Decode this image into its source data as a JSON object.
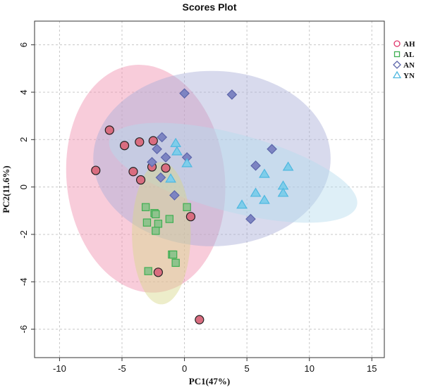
{
  "chart_data": {
    "type": "scatter",
    "title": "Scores Plot",
    "xlabel": "PC1(47%)",
    "ylabel": "PC2(11.6%)",
    "xlim": [
      -12,
      16
    ],
    "ylim": [
      -7.2,
      7.0
    ],
    "xticks": [
      -10,
      -5,
      0,
      5,
      10,
      15
    ],
    "yticks": [
      -6,
      -4,
      -2,
      0,
      2,
      4,
      6
    ],
    "grid": true,
    "legend_position": "top-right",
    "series": [
      {
        "name": "AH",
        "marker": "circle",
        "color": "#e0356b",
        "point_fill": "#d96d80",
        "ellipse_fill": "#ef8fac",
        "points": [
          {
            "x": -6.0,
            "y": 2.4
          },
          {
            "x": -4.8,
            "y": 1.75
          },
          {
            "x": -3.6,
            "y": 1.9
          },
          {
            "x": -2.5,
            "y": 1.95
          },
          {
            "x": -7.1,
            "y": 0.7
          },
          {
            "x": -4.1,
            "y": 0.65
          },
          {
            "x": -3.5,
            "y": 0.3
          },
          {
            "x": -2.6,
            "y": 0.85
          },
          {
            "x": -1.5,
            "y": 0.8
          },
          {
            "x": 0.5,
            "y": -1.25
          },
          {
            "x": -2.1,
            "y": -3.6
          },
          {
            "x": 1.2,
            "y": -5.6
          }
        ]
      },
      {
        "name": "AL",
        "marker": "square",
        "color": "#3fae52",
        "point_fill": "#8fc38d",
        "ellipse_fill": "#d8d889",
        "points": [
          {
            "x": -3.1,
            "y": -0.85
          },
          {
            "x": -2.4,
            "y": -1.1
          },
          {
            "x": -2.3,
            "y": -1.15
          },
          {
            "x": -3.0,
            "y": -1.5
          },
          {
            "x": -2.1,
            "y": -1.55
          },
          {
            "x": -2.3,
            "y": -1.85
          },
          {
            "x": -1.2,
            "y": -1.35
          },
          {
            "x": 0.2,
            "y": -0.85
          },
          {
            "x": -1.0,
            "y": -2.85
          },
          {
            "x": -0.9,
            "y": -2.85
          },
          {
            "x": -0.7,
            "y": -3.2
          },
          {
            "x": -2.9,
            "y": -3.55
          }
        ]
      },
      {
        "name": "AN",
        "marker": "diamond",
        "color": "#5d66aa",
        "point_fill": "#7d84c2",
        "ellipse_fill": "#a8aed6",
        "points": [
          {
            "x": 0.0,
            "y": 3.95
          },
          {
            "x": 3.8,
            "y": 3.9
          },
          {
            "x": -1.8,
            "y": 2.1
          },
          {
            "x": -2.2,
            "y": 1.6
          },
          {
            "x": -1.5,
            "y": 1.25
          },
          {
            "x": -2.6,
            "y": 1.05
          },
          {
            "x": -1.9,
            "y": 0.4
          },
          {
            "x": 0.2,
            "y": 1.25
          },
          {
            "x": 7.0,
            "y": 1.6
          },
          {
            "x": 5.7,
            "y": 0.9
          },
          {
            "x": -0.8,
            "y": -0.35
          },
          {
            "x": 5.3,
            "y": -1.35
          }
        ]
      },
      {
        "name": "YN",
        "marker": "triangle",
        "color": "#4fb8e0",
        "point_fill": "#7fcdea",
        "ellipse_fill": "#b5dced",
        "points": [
          {
            "x": -0.7,
            "y": 1.85
          },
          {
            "x": -0.6,
            "y": 1.5
          },
          {
            "x": 0.2,
            "y": 1.0
          },
          {
            "x": -1.1,
            "y": 0.35
          },
          {
            "x": 6.4,
            "y": 0.55
          },
          {
            "x": 8.3,
            "y": 0.85
          },
          {
            "x": 7.9,
            "y": 0.05
          },
          {
            "x": 7.9,
            "y": -0.25
          },
          {
            "x": 5.7,
            "y": -0.25
          },
          {
            "x": 6.4,
            "y": -0.55
          },
          {
            "x": 4.6,
            "y": -0.75
          }
        ]
      }
    ],
    "ellipses": [
      {
        "series": "AH",
        "cx": -3.1,
        "cy": 0.35,
        "rx": 4.9,
        "ry": 6.0,
        "angle_deg": -78
      },
      {
        "series": "AN",
        "cx": 2.2,
        "cy": 1.2,
        "rx": 9.5,
        "ry": 3.7,
        "angle_deg": 0
      },
      {
        "series": "YN",
        "cx": 3.9,
        "cy": 0.6,
        "rx": 10.0,
        "ry": 1.65,
        "angle_deg": -8
      },
      {
        "series": "AL",
        "cx": -1.85,
        "cy": -1.95,
        "rx": 2.35,
        "ry": 3.0,
        "angle_deg": 0
      }
    ]
  }
}
